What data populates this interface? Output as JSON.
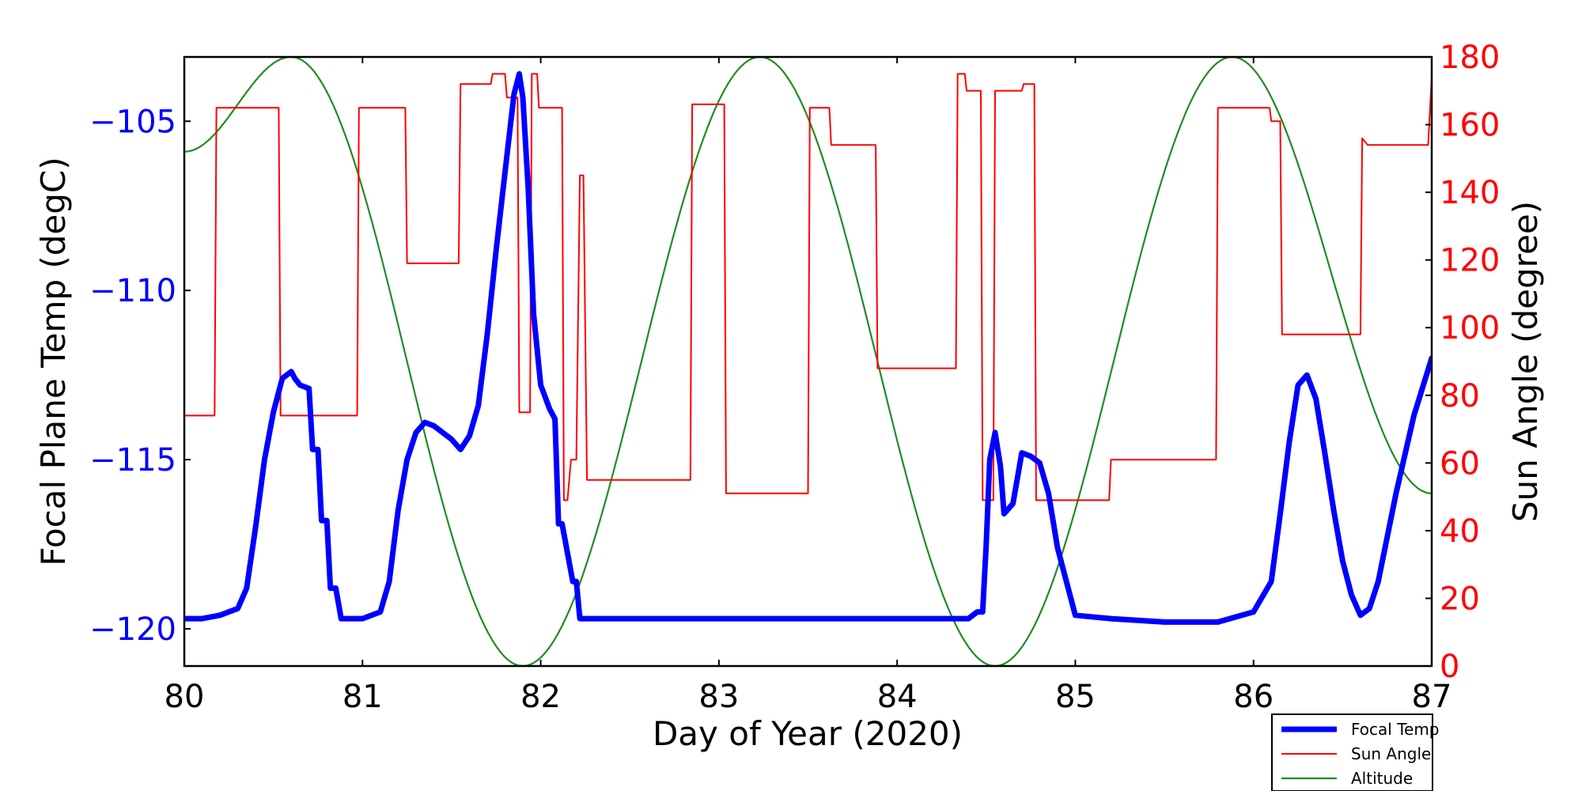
{
  "chart_data": {
    "type": "line",
    "xlabel": "Day of Year (2020)",
    "ylabel_left": "Focal Plane Temp (degC)",
    "ylabel_right": "Sun Angle (degree)",
    "xlim": [
      80,
      87
    ],
    "ylim_left": [
      -121.1,
      -103.1
    ],
    "ylim_right": [
      0,
      180
    ],
    "x_ticks": [
      "80",
      "81",
      "82",
      "83",
      "84",
      "85",
      "86",
      "87"
    ],
    "y_ticks_left": [
      "−120",
      "−115",
      "−110",
      "−105"
    ],
    "y_ticks_right": [
      "0",
      "20",
      "40",
      "60",
      "80",
      "100",
      "120",
      "140",
      "160",
      "180"
    ],
    "grid": false,
    "legend_position": "bottom-right, outside plot",
    "series": [
      {
        "name": "Focal Temp",
        "axis": "left",
        "color": "#0000ff",
        "x": [
          80.0,
          80.1,
          80.2,
          80.3,
          80.35,
          80.4,
          80.45,
          80.5,
          80.55,
          80.6,
          80.62,
          80.65,
          80.7,
          80.72,
          80.75,
          80.77,
          80.8,
          80.82,
          80.85,
          80.88,
          81.0,
          81.1,
          81.15,
          81.2,
          81.25,
          81.3,
          81.35,
          81.4,
          81.5,
          81.55,
          81.6,
          81.65,
          81.7,
          81.75,
          81.8,
          81.85,
          81.88,
          81.9,
          81.93,
          81.96,
          82.0,
          82.05,
          82.08,
          82.1,
          82.12,
          82.18,
          82.2,
          82.22,
          82.25,
          82.3,
          82.5,
          83.0,
          83.5,
          84.0,
          84.4,
          84.45,
          84.48,
          84.5,
          84.52,
          84.55,
          84.58,
          84.6,
          84.65,
          84.7,
          84.75,
          84.8,
          84.85,
          84.9,
          85.0,
          85.2,
          85.5,
          85.8,
          86.0,
          86.1,
          86.15,
          86.2,
          86.25,
          86.3,
          86.35,
          86.4,
          86.45,
          86.5,
          86.55,
          86.6,
          86.65,
          86.7,
          86.8,
          86.9,
          87.0
        ],
        "y": [
          -119.7,
          -119.7,
          -119.6,
          -119.4,
          -118.8,
          -117.0,
          -115.0,
          -113.6,
          -112.6,
          -112.4,
          -112.6,
          -112.8,
          -112.9,
          -114.7,
          -114.7,
          -116.8,
          -116.8,
          -118.8,
          -118.8,
          -119.7,
          -119.7,
          -119.5,
          -118.6,
          -116.5,
          -115.0,
          -114.2,
          -113.9,
          -114.0,
          -114.4,
          -114.7,
          -114.3,
          -113.4,
          -111.3,
          -108.8,
          -106.5,
          -104.2,
          -103.6,
          -104.3,
          -107.0,
          -110.7,
          -112.8,
          -113.5,
          -113.8,
          -116.9,
          -116.9,
          -118.6,
          -118.6,
          -119.7,
          -119.7,
          -119.7,
          -119.7,
          -119.7,
          -119.7,
          -119.7,
          -119.7,
          -119.5,
          -119.5,
          -117.5,
          -115.0,
          -114.2,
          -115.2,
          -116.6,
          -116.3,
          -114.8,
          -114.9,
          -115.1,
          -116.0,
          -117.6,
          -119.6,
          -119.7,
          -119.8,
          -119.8,
          -119.5,
          -118.6,
          -116.6,
          -114.5,
          -112.8,
          -112.5,
          -113.2,
          -114.8,
          -116.5,
          -118.0,
          -119.0,
          -119.6,
          -119.4,
          -118.6,
          -116.0,
          -113.7,
          -112.0
        ]
      },
      {
        "name": "Sun Angle",
        "axis": "right",
        "color": "#ff0000",
        "x": [
          80.0,
          80.17,
          80.18,
          80.53,
          80.54,
          80.97,
          80.98,
          81.24,
          81.25,
          81.54,
          81.55,
          81.72,
          81.73,
          81.8,
          81.81,
          81.84,
          81.85,
          81.87,
          81.88,
          81.94,
          81.95,
          81.98,
          81.99,
          82.12,
          82.13,
          82.15,
          82.17,
          82.2,
          82.22,
          82.24,
          82.26,
          82.29,
          82.3,
          82.84,
          82.85,
          83.03,
          83.04,
          83.5,
          83.51,
          83.62,
          83.63,
          83.88,
          83.89,
          84.33,
          84.34,
          84.38,
          84.39,
          84.47,
          84.48,
          84.54,
          84.55,
          84.7,
          84.71,
          84.77,
          84.78,
          85.19,
          85.2,
          85.79,
          85.8,
          86.09,
          86.1,
          86.15,
          86.16,
          86.6,
          86.61,
          86.64,
          86.98,
          87.0
        ],
        "y": [
          74,
          74,
          165,
          165,
          74,
          74,
          165,
          165,
          119,
          119,
          172,
          172,
          175,
          175,
          168,
          168,
          168,
          168,
          75,
          75,
          175,
          175,
          165,
          165,
          49,
          49,
          61,
          61,
          145,
          145,
          55,
          55,
          55,
          55,
          166,
          166,
          51,
          51,
          165,
          165,
          154,
          154,
          88,
          88,
          175,
          175,
          170,
          170,
          49,
          49,
          170,
          170,
          172,
          172,
          49,
          49,
          61,
          61,
          165,
          165,
          161,
          161,
          98,
          98,
          156,
          154,
          154,
          174
        ]
      },
      {
        "name": "Altitude",
        "axis": "right",
        "color": "#228b22",
        "x": [
          80.0,
          80.6,
          81.9,
          83.23,
          84.55,
          85.88,
          87.0
        ],
        "y": [
          152,
          180,
          0,
          180,
          0,
          180,
          51
        ],
        "shape": "sinusoid"
      }
    ]
  }
}
